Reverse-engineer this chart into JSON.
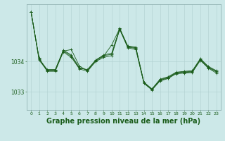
{
  "background_color": "#cce8e8",
  "grid_color": "#b0d0d0",
  "line_color": "#1a5c1a",
  "marker_color": "#1a5c1a",
  "title": "Graphe pression niveau de la mer (hPa)",
  "title_fontsize": 7,
  "xlim": [
    -0.5,
    23.5
  ],
  "ylim": [
    1032.4,
    1035.9
  ],
  "yticks": [
    1033,
    1034
  ],
  "xticks": [
    0,
    1,
    2,
    3,
    4,
    5,
    6,
    7,
    8,
    9,
    10,
    11,
    12,
    13,
    14,
    15,
    16,
    17,
    18,
    19,
    20,
    21,
    22,
    23
  ],
  "series": [
    [
      1035.65,
      1034.1,
      1033.72,
      1033.72,
      1034.38,
      1034.22,
      1033.8,
      1033.72,
      1034.05,
      1034.22,
      1034.28,
      1035.1,
      1034.52,
      1034.48,
      1033.32,
      1033.1,
      1033.42,
      1033.5,
      1033.65,
      1033.68,
      1033.7,
      1034.1,
      1033.84,
      1033.7
    ],
    [
      1035.65,
      1034.05,
      1033.7,
      1033.7,
      1034.35,
      1034.4,
      1033.85,
      1033.7,
      1034.02,
      1034.18,
      1034.55,
      1035.1,
      1034.48,
      1034.44,
      1033.3,
      1033.08,
      1033.38,
      1033.46,
      1033.62,
      1033.64,
      1033.66,
      1034.06,
      1033.8,
      1033.66
    ],
    [
      1035.65,
      1034.08,
      1033.74,
      1033.74,
      1034.36,
      1034.18,
      1033.78,
      1033.74,
      1034.04,
      1034.2,
      1034.24,
      1035.08,
      1034.5,
      1034.46,
      1033.3,
      1033.08,
      1033.4,
      1033.48,
      1033.63,
      1033.66,
      1033.68,
      1034.08,
      1033.82,
      1033.68
    ],
    [
      1035.65,
      1034.12,
      1033.68,
      1033.68,
      1034.32,
      1034.14,
      1033.76,
      1033.68,
      1034.0,
      1034.14,
      1034.2,
      1035.06,
      1034.46,
      1034.4,
      1033.28,
      1033.06,
      1033.36,
      1033.44,
      1033.6,
      1033.62,
      1033.64,
      1034.04,
      1033.78,
      1033.62
    ]
  ]
}
